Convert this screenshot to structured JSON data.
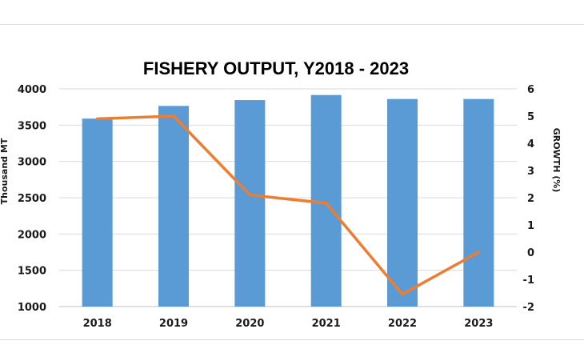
{
  "chart_data": {
    "type": "bar",
    "title": "FISHERY OUTPUT, Y2018 - 2023",
    "categories": [
      "2018",
      "2019",
      "2020",
      "2021",
      "2022",
      "2023"
    ],
    "series": [
      {
        "type": "bar",
        "axis": "left",
        "color": "#5b9bd5",
        "values": [
          3590,
          3765,
          3845,
          3915,
          3860,
          3860
        ]
      },
      {
        "type": "line",
        "axis": "right",
        "color": "#ed7d31",
        "values": [
          4.9,
          5.0,
          2.1,
          1.8,
          -1.55,
          0.0
        ]
      }
    ],
    "ylabel": "Thousand MT",
    "ylabel_right": "GROWTH (%)",
    "ylim": [
      1000,
      4000
    ],
    "ylim_right": [
      -2,
      6
    ],
    "yticks": [
      "1000",
      "1500",
      "2000",
      "2500",
      "3000",
      "3500",
      "4000"
    ],
    "yticks_right": [
      "-2",
      "-1",
      "0",
      "1",
      "2",
      "3",
      "4",
      "5",
      "6"
    ],
    "grid": true,
    "legend": "none"
  }
}
